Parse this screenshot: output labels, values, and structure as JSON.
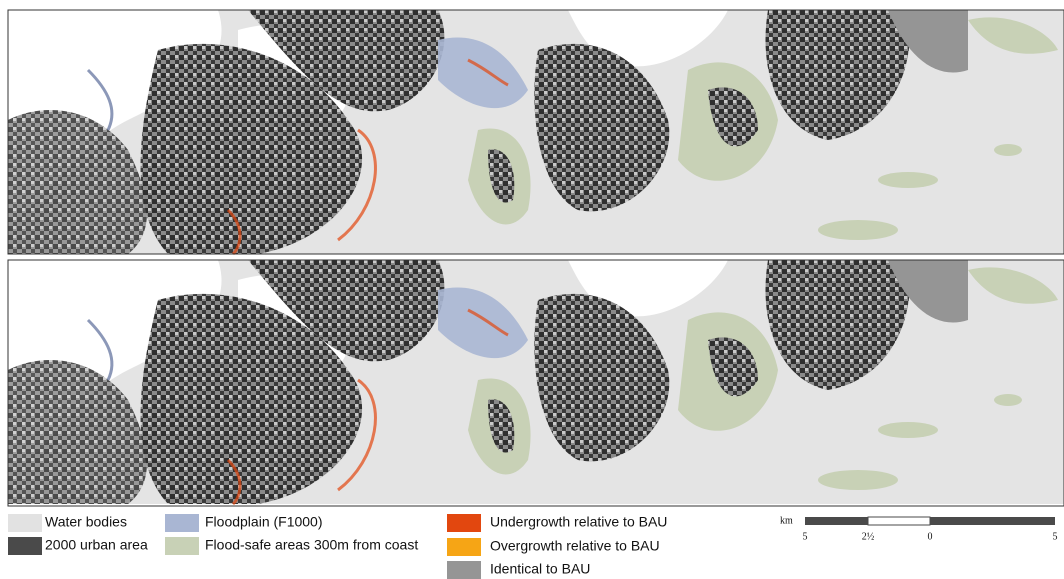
{
  "legend": {
    "items": [
      {
        "label": "Water bodies",
        "color": "#e2e2e2"
      },
      {
        "label": "2000 urban area",
        "color": "#4a4a4a"
      },
      {
        "label": "Floodplain (F1000)",
        "color": "#a9b6d3"
      },
      {
        "label": "Flood-safe areas 300m from coast",
        "color": "#c8d1b6"
      },
      {
        "label": "Undergrowth relative to BAU",
        "color": "#e2470f"
      },
      {
        "label": "Overgrowth relative to BAU",
        "color": "#f6a515"
      },
      {
        "label": "Identical to BAU",
        "color": "#959595"
      }
    ]
  },
  "scale_bar": {
    "unit": "km",
    "labels": [
      "5",
      "2½",
      "0",
      "5"
    ]
  }
}
